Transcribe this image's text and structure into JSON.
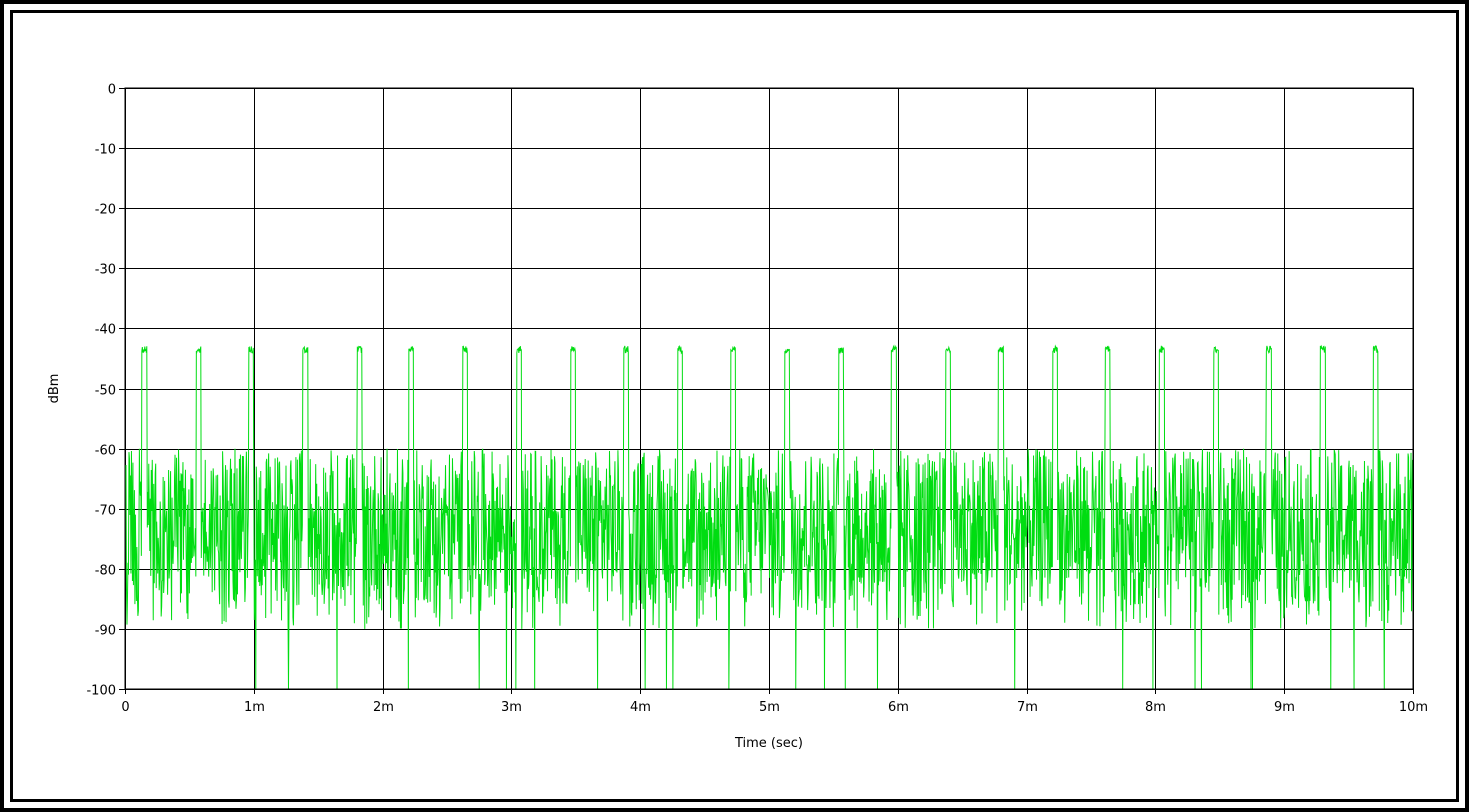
{
  "chart_data": {
    "type": "line",
    "xlabel": "Time (sec)",
    "ylabel": "dBm",
    "xlim": [
      0,
      0.01
    ],
    "ylim": [
      -100,
      0
    ],
    "x_ticks": [
      0,
      0.001,
      0.002,
      0.003,
      0.004,
      0.005,
      0.006,
      0.007,
      0.008,
      0.009,
      0.01
    ],
    "x_tick_labels": [
      "0",
      "1m",
      "2m",
      "3m",
      "4m",
      "5m",
      "6m",
      "7m",
      "8m",
      "9m",
      "10m"
    ],
    "y_ticks": [
      0,
      -10,
      -20,
      -30,
      -40,
      -50,
      -60,
      -70,
      -80,
      -90,
      -100
    ],
    "y_tick_labels": [
      "0",
      "-10",
      "-20",
      "-30",
      "-40",
      "-50",
      "-60",
      "-70",
      "-80",
      "-90",
      "-100"
    ],
    "grid": true,
    "line_color": "#00dd11",
    "series": [
      {
        "noise_floor_dbm": [
          -86,
          -60
        ],
        "noise_dropouts_dbm": -100,
        "pulse_level_dbm": -43.5,
        "pulse_period_sec": 0.000415,
        "pulse_width_sec": 4e-05,
        "pulse_times_sec": [
          0.00015,
          0.00057,
          0.00098,
          0.0014,
          0.00182,
          0.00222,
          0.00264,
          0.00306,
          0.00348,
          0.00389,
          0.00431,
          0.00472,
          0.00514,
          0.00556,
          0.00597,
          0.00639,
          0.0068,
          0.00722,
          0.00763,
          0.00805,
          0.00847,
          0.00888,
          0.0093,
          0.00971
        ]
      }
    ]
  }
}
